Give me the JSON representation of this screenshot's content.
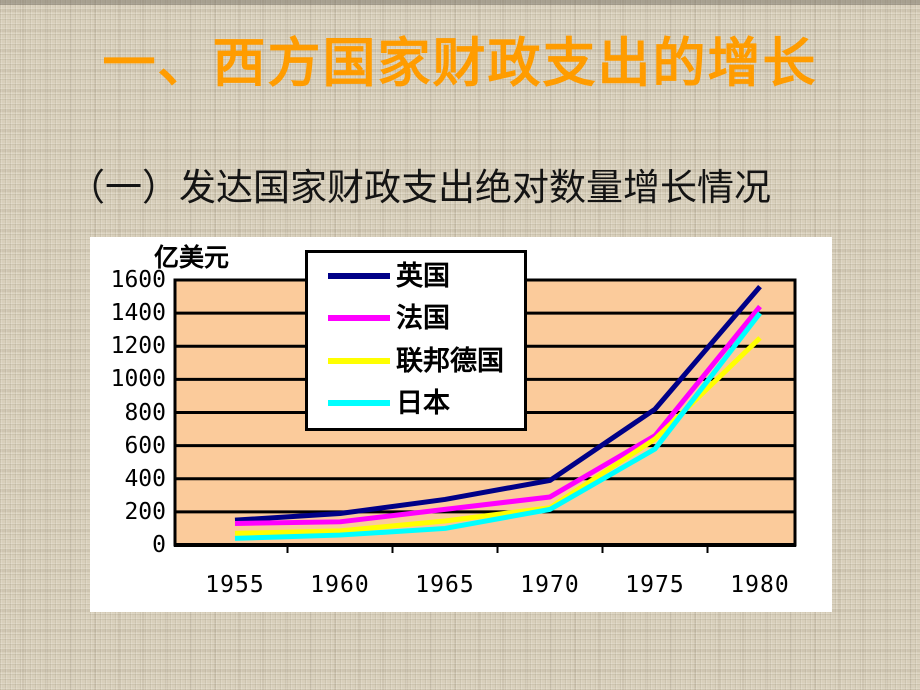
{
  "slide": {
    "title": "一、西方国家财政支出的增长",
    "subtitle": "（一）发达国家财政支出绝对数量增长情况",
    "title_color": "#ff9c00"
  },
  "chart_data": {
    "type": "line",
    "title": "",
    "unit_label": "亿美元",
    "xlabel": "",
    "ylabel": "亿美元",
    "x": [
      1955,
      1960,
      1965,
      1970,
      1975,
      1980
    ],
    "x_tick_labels": [
      "1955",
      "1960",
      "1965",
      "1970",
      "1975",
      "1980"
    ],
    "ylim": [
      0,
      1600
    ],
    "y_tick_step": 200,
    "y_tick_labels": [
      "0",
      "200",
      "400",
      "600",
      "800",
      "1000",
      "1200",
      "1400",
      "1600"
    ],
    "grid": true,
    "grid_color": "#000000",
    "plot_bg_color": "#fbcb9b",
    "legend_position": "top-center-overlay",
    "series": [
      {
        "name": "英国",
        "color": "#000087",
        "values": [
          150,
          190,
          275,
          390,
          820,
          1560
        ]
      },
      {
        "name": "法国",
        "color": "#ff00ff",
        "values": [
          130,
          140,
          215,
          290,
          660,
          1440
        ]
      },
      {
        "name": "联邦德国",
        "color": "#ffff00",
        "values": [
          70,
          85,
          145,
          225,
          640,
          1250
        ]
      },
      {
        "name": "日本",
        "color": "#00ffff",
        "values": [
          40,
          60,
          100,
          215,
          580,
          1400
        ]
      }
    ]
  }
}
